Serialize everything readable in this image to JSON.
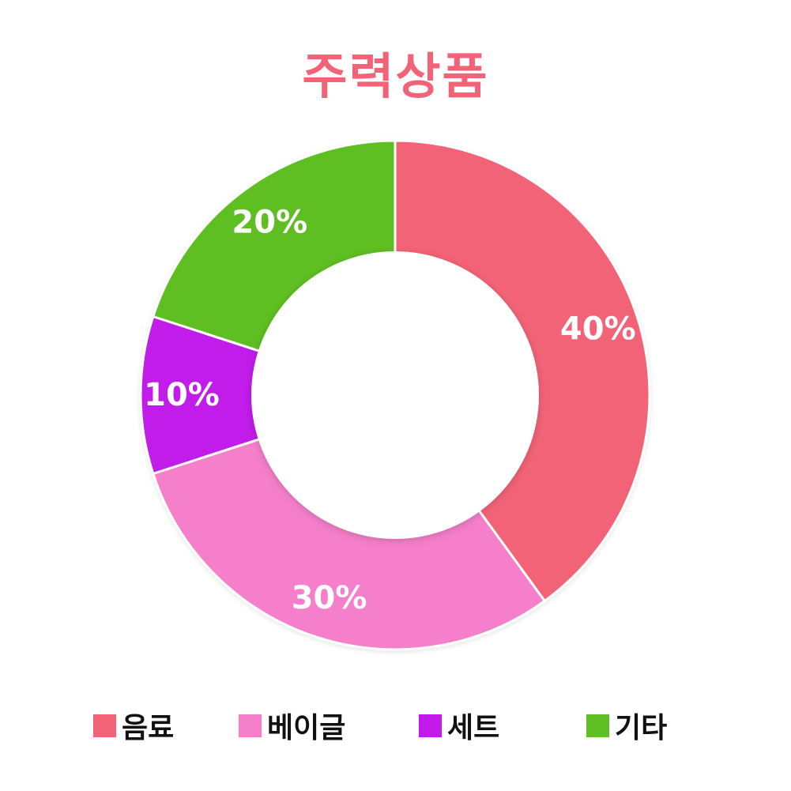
{
  "chart_data": {
    "type": "pie",
    "title": "주력상품",
    "categories": [
      "음료",
      "베이글",
      "세트",
      "기타"
    ],
    "values": [
      40,
      30,
      10,
      20
    ],
    "value_labels": [
      "40%",
      "30%",
      "10%",
      "20%"
    ],
    "colors": [
      "#F36377",
      "#F57FCA",
      "#C21AEB",
      "#5FBF24"
    ],
    "title_color": "#F36377",
    "donut": true,
    "start": "top",
    "direction": "clockwise",
    "legend_position": "bottom"
  }
}
